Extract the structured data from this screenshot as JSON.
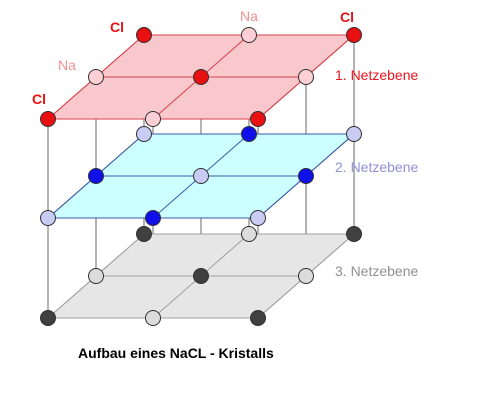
{
  "caption": "Aufbau eines NaCL - Kristalls",
  "atom_labels": {
    "cl": "Cl",
    "na": "Na"
  },
  "planes": [
    {
      "label": "1. Netzebene",
      "label_color": "#e8141c",
      "fill": "#f8c8cc",
      "edge": "#d8404a",
      "cl_color": "#e81010",
      "na_color": "#fcd0d4",
      "cl_positions": [
        [
          0,
          0
        ],
        [
          1,
          1
        ],
        [
          2,
          0
        ],
        [
          2,
          2
        ],
        [
          0,
          2
        ]
      ],
      "na_positions": [
        [
          1,
          0
        ],
        [
          0,
          1
        ],
        [
          2,
          1
        ],
        [
          1,
          2
        ]
      ]
    },
    {
      "label": "2. Netzebene",
      "label_color": "#9090d8",
      "fill": "#ccffff",
      "edge": "#3c5aa8",
      "cl_color": "#1010e8",
      "na_color": "#c8ccf4",
      "cl_positions": [
        [
          1,
          0
        ],
        [
          0,
          1
        ],
        [
          2,
          1
        ],
        [
          1,
          2
        ]
      ],
      "na_positions": [
        [
          0,
          0
        ],
        [
          2,
          0
        ],
        [
          1,
          1
        ],
        [
          0,
          2
        ],
        [
          2,
          2
        ]
      ]
    },
    {
      "label": "3. Netzebene",
      "label_color": "#909090",
      "fill": "#e6e6e6",
      "edge": "#a0a0a0",
      "cl_color": "#404040",
      "na_color": "#dcdcdc",
      "cl_positions": [
        [
          0,
          0
        ],
        [
          1,
          1
        ],
        [
          2,
          0
        ],
        [
          2,
          2
        ],
        [
          0,
          2
        ]
      ],
      "na_positions": [
        [
          1,
          0
        ],
        [
          0,
          1
        ],
        [
          2,
          1
        ],
        [
          1,
          2
        ]
      ]
    }
  ]
}
